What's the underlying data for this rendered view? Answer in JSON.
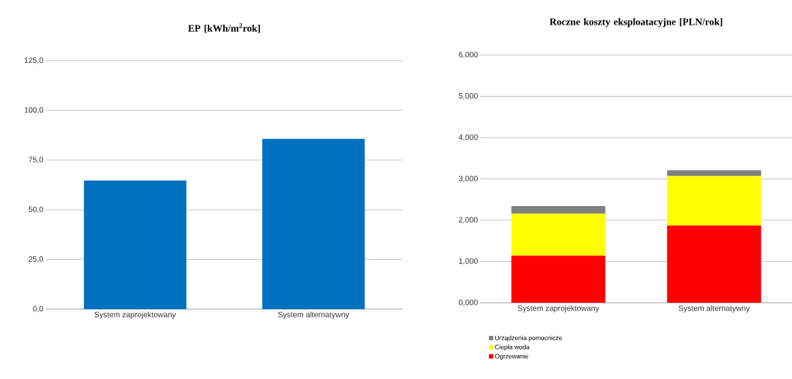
{
  "chart_data": [
    {
      "type": "bar",
      "title": "EP  [kWh/m$^{2}$rok]",
      "categories": [
        "System zaprojektowany",
        "System alternatywny"
      ],
      "values": [
        64.7,
        85.7
      ],
      "color": "#0070c0",
      "ylim": [
        0,
        125
      ],
      "yticks": [
        {
          "value": 0,
          "label": "0,0"
        },
        {
          "value": 25,
          "label": "25,0"
        },
        {
          "value": 50,
          "label": "50,0"
        },
        {
          "value": 75,
          "label": "75,0"
        },
        {
          "value": 100,
          "label": "100,0"
        },
        {
          "value": 125,
          "label": "125,0"
        }
      ],
      "grid": "y"
    },
    {
      "type": "bar",
      "title": "Roczne koszty eksploatacyjne [PLN/rok]",
      "categories": [
        "System zaprojektowany",
        "System alternatywny"
      ],
      "stacked": true,
      "series": [
        {
          "name": "Ogrzewanie",
          "color": "#ff0000",
          "values": [
            1.14,
            1.87
          ]
        },
        {
          "name": "Ciepła woda",
          "color": "#ffff00",
          "values": [
            1.02,
            1.2
          ]
        },
        {
          "name": "Urządzenia pomocnicze",
          "color": "#808080",
          "values": [
            0.18,
            0.14
          ]
        }
      ],
      "ylim": [
        0,
        6
      ],
      "yticks": [
        {
          "value": 0,
          "label": "0,000"
        },
        {
          "value": 1,
          "label": "1,000"
        },
        {
          "value": 2,
          "label": "2,000"
        },
        {
          "value": 3,
          "label": "3,000"
        },
        {
          "value": 4,
          "label": "4,000"
        },
        {
          "value": 5,
          "label": "5,000"
        },
        {
          "value": 6,
          "label": "6,000"
        }
      ],
      "grid": "y",
      "legend": "bottom"
    }
  ]
}
